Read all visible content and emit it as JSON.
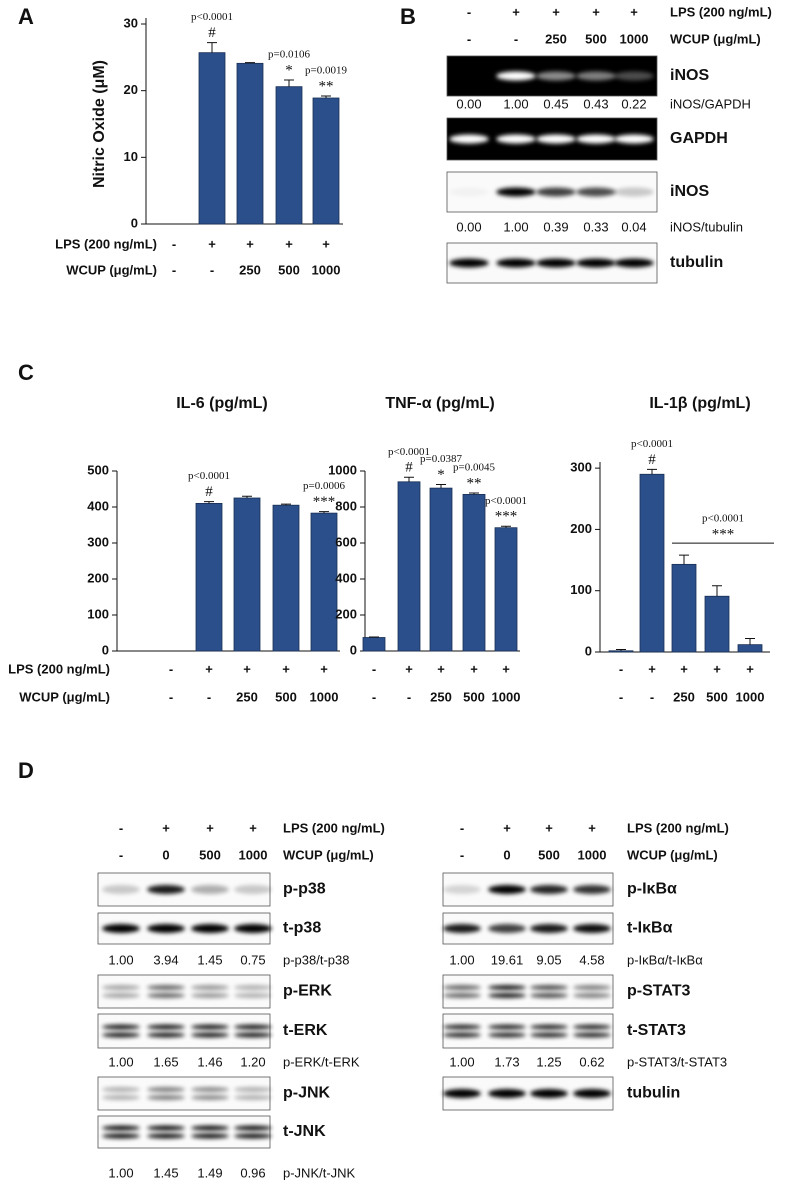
{
  "panel_labels": [
    "A",
    "B",
    "C",
    "D"
  ],
  "chart_data": [
    {
      "type": "bar",
      "y_label": "Nitric Oxide (μM)",
      "color": "#2b4f8a",
      "values": [
        0,
        25.7,
        24.1,
        20.6,
        18.9
      ],
      "errors": [
        0,
        1.5,
        0.1,
        1.0,
        0.3
      ],
      "ylim": [
        0,
        30
      ],
      "yticks": [
        0,
        10,
        20,
        30
      ],
      "treatments": [
        {
          "label": "LPS (200 ng/mL)",
          "levels": [
            "-",
            "+",
            "+",
            "+",
            "+"
          ]
        },
        {
          "label": "WCUP (μg/mL)",
          "levels": [
            "-",
            "-",
            "250",
            "500",
            "1000"
          ]
        }
      ],
      "annotations": [
        {
          "index": 1,
          "p": "p<0.0001",
          "mark": "#"
        },
        {
          "index": 3,
          "p": "p=0.0106",
          "mark": "*"
        },
        {
          "index": 4,
          "p": "p=0.0019",
          "mark": "**"
        }
      ]
    },
    {
      "type": "bar",
      "title": "IL-6 (pg/mL)",
      "color": "#2b4f8a",
      "values": [
        0,
        410,
        425,
        405,
        383
      ],
      "errors": [
        0,
        5,
        5,
        3,
        4
      ],
      "ylim": [
        0,
        500
      ],
      "yticks": [
        0,
        100,
        200,
        300,
        400,
        500
      ],
      "treatments": [
        {
          "label": "LPS (200 ng/mL)",
          "levels": [
            "-",
            "+",
            "+",
            "+",
            "+"
          ]
        },
        {
          "label": "WCUP (μg/mL)",
          "levels": [
            "-",
            "-",
            "250",
            "500",
            "1000"
          ]
        }
      ],
      "annotations": [
        {
          "index": 1,
          "p": "p<0.0001",
          "mark": "#"
        },
        {
          "index": 4,
          "p": "p=0.0006",
          "mark": "***"
        }
      ]
    },
    {
      "type": "bar",
      "title": "TNF-α (pg/mL)",
      "color": "#2b4f8a",
      "values": [
        75,
        940,
        905,
        870,
        685
      ],
      "errors": [
        3,
        25,
        20,
        8,
        8
      ],
      "ylim": [
        0,
        1000
      ],
      "yticks": [
        0,
        200,
        400,
        600,
        800,
        1000
      ],
      "treatments": [
        {
          "levels": [
            "-",
            "+",
            "+",
            "+",
            "+"
          ]
        },
        {
          "levels": [
            "-",
            "-",
            "250",
            "500",
            "1000"
          ]
        }
      ],
      "annotations": [
        {
          "index": 1,
          "p": "p<0.0001",
          "mark": "#"
        },
        {
          "index": 2,
          "p": "p=0.0387",
          "mark": "*"
        },
        {
          "index": 3,
          "p": "p=0.0045",
          "mark": "**"
        },
        {
          "index": 4,
          "p": "p<0.0001",
          "mark": "***"
        }
      ]
    },
    {
      "type": "bar",
      "title": "IL-1β (pg/mL)",
      "color": "#2b4f8a",
      "values": [
        2,
        290,
        143,
        91,
        12
      ],
      "errors": [
        2,
        8,
        15,
        17,
        10
      ],
      "ylim": [
        0,
        310
      ],
      "yticks": [
        0,
        100,
        200,
        300
      ],
      "treatments": [
        {
          "levels": [
            "-",
            "+",
            "+",
            "+",
            "+"
          ]
        },
        {
          "levels": [
            "-",
            "-",
            "250",
            "500",
            "1000"
          ]
        }
      ],
      "annotations": [
        {
          "index": 1,
          "p": "p<0.0001",
          "mark": "#"
        },
        {
          "from": 2,
          "to": 4,
          "p": "p<0.0001",
          "mark": "***"
        }
      ]
    }
  ],
  "blots": [
    {
      "treatments": [
        {
          "label": "LPS (200 ng/mL)",
          "levels": [
            "-",
            "+",
            "+",
            "+",
            "+"
          ]
        },
        {
          "label": "WCUP (μg/mL)",
          "levels": [
            "-",
            "-",
            "250",
            "500",
            "1000"
          ]
        }
      ],
      "rows": [
        {
          "kind": "blot",
          "label": "iNOS",
          "style": "dark"
        },
        {
          "kind": "ratio",
          "label": "iNOS/GAPDH",
          "values": [
            "0.00",
            "1.00",
            "0.45",
            "0.43",
            "0.22"
          ]
        },
        {
          "kind": "blot",
          "label": "GAPDH",
          "style": "dark"
        },
        {
          "kind": "blot",
          "label": "iNOS",
          "style": "light"
        },
        {
          "kind": "ratio",
          "label": "iNOS/tubulin",
          "values": [
            "0.00",
            "1.00",
            "0.39",
            "0.33",
            "0.04"
          ]
        },
        {
          "kind": "blot",
          "label": "tubulin",
          "style": "light"
        }
      ]
    },
    {
      "treatments": [
        {
          "label": "LPS (200 ng/mL)",
          "levels": [
            "-",
            "+",
            "+",
            "+"
          ]
        },
        {
          "label": "WCUP (μg/mL)",
          "levels": [
            "-",
            "0",
            "500",
            "1000"
          ]
        }
      ],
      "rows": [
        {
          "kind": "blot",
          "label": "p-p38",
          "style": "light"
        },
        {
          "kind": "blot",
          "label": "t-p38",
          "style": "light"
        },
        {
          "kind": "ratio",
          "label": "p-p38/t-p38",
          "values": [
            "1.00",
            "3.94",
            "1.45",
            "0.75"
          ]
        },
        {
          "kind": "blot",
          "label": "p-ERK",
          "style": "light"
        },
        {
          "kind": "blot",
          "label": "t-ERK",
          "style": "light"
        },
        {
          "kind": "ratio",
          "label": "p-ERK/t-ERK",
          "values": [
            "1.00",
            "1.65",
            "1.46",
            "1.20"
          ]
        },
        {
          "kind": "blot",
          "label": "p-JNK",
          "style": "light"
        },
        {
          "kind": "blot",
          "label": "t-JNK",
          "style": "light"
        },
        {
          "kind": "ratio",
          "label": "p-JNK/t-JNK",
          "values": [
            "1.00",
            "1.45",
            "1.49",
            "0.96"
          ]
        }
      ]
    },
    {
      "treatments": [
        {
          "label": "LPS (200 ng/mL)",
          "levels": [
            "-",
            "+",
            "+",
            "+"
          ]
        },
        {
          "label": "WCUP (μg/mL)",
          "levels": [
            "-",
            "0",
            "500",
            "1000"
          ]
        }
      ],
      "rows": [
        {
          "kind": "blot",
          "label": "p-IκBα",
          "style": "light"
        },
        {
          "kind": "blot",
          "label": "t-IκBα",
          "style": "light"
        },
        {
          "kind": "ratio",
          "label": "p-IκBα/t-IκBα",
          "values": [
            "1.00",
            "19.61",
            "9.05",
            "4.58"
          ]
        },
        {
          "kind": "blot",
          "label": "p-STAT3",
          "style": "light"
        },
        {
          "kind": "blot",
          "label": "t-STAT3",
          "style": "light"
        },
        {
          "kind": "ratio",
          "label": "p-STAT3/t-STAT3",
          "values": [
            "1.00",
            "1.73",
            "1.25",
            "0.62"
          ]
        },
        {
          "kind": "blot",
          "label": "tubulin",
          "style": "light"
        }
      ]
    }
  ]
}
